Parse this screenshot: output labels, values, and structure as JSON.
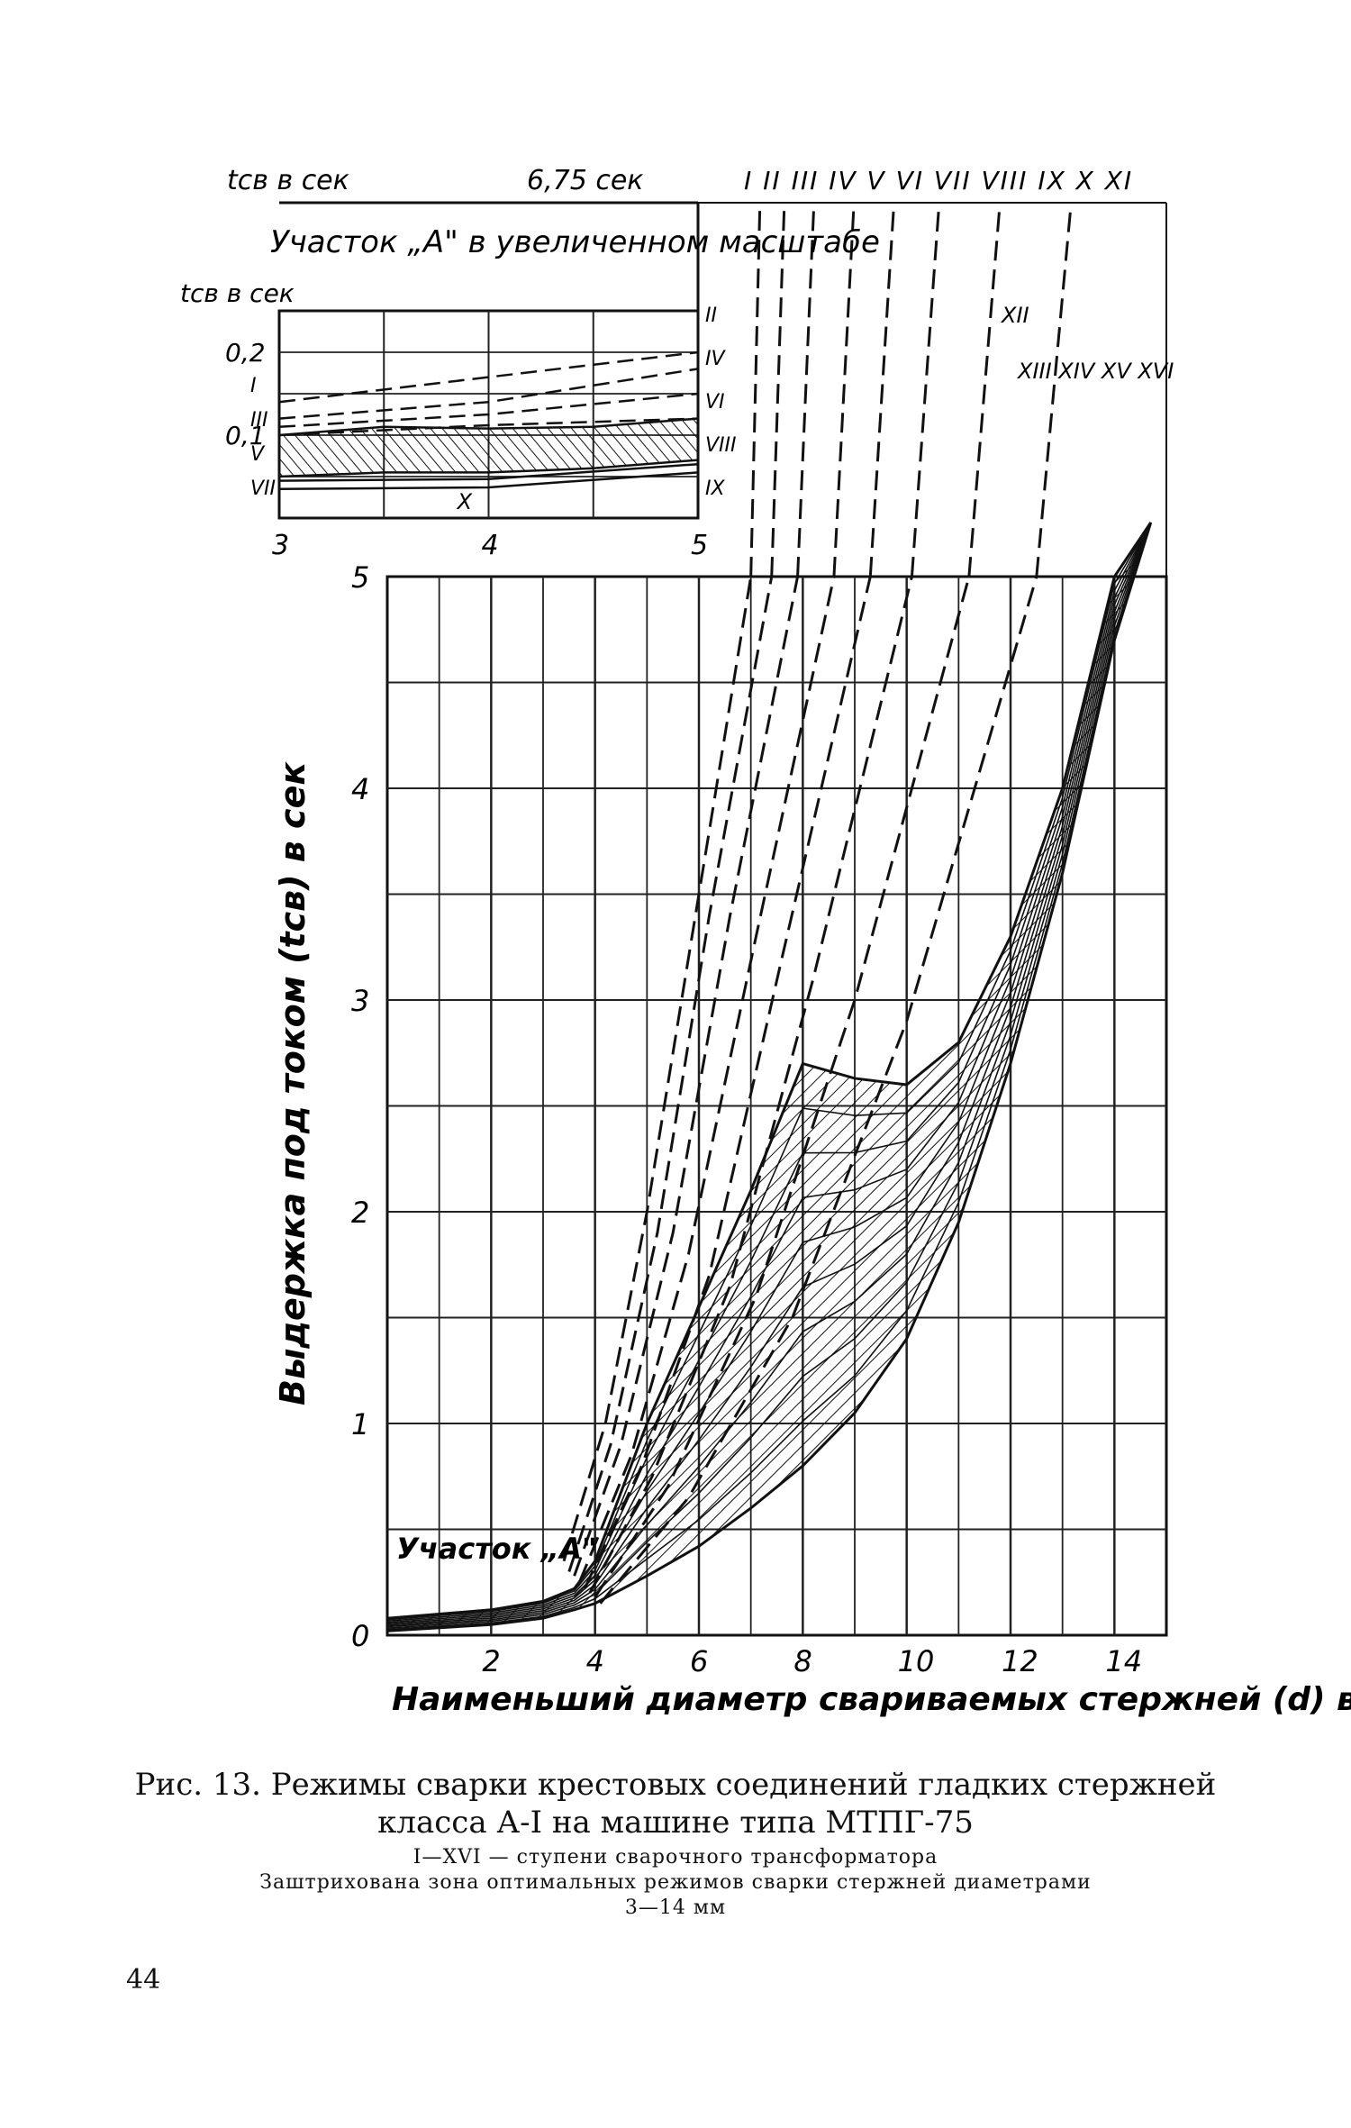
{
  "chart_data": [
    {
      "type": "line",
      "panel": "main",
      "xlabel": "Наименьший диаметр свариваемых стержней (d) в мм",
      "ylabel": "Выдержка под током (tсв) в сек",
      "xlim": [
        0,
        15
      ],
      "ylim": [
        0,
        5
      ],
      "x_ticks": [
        "2",
        "4",
        "6",
        "8",
        "10",
        "12",
        "14"
      ],
      "y_ticks": [
        "0",
        "1",
        "2",
        "3",
        "4",
        "5"
      ],
      "grid": true,
      "annotation": "Участок „А\"",
      "series": [
        {
          "name": "I",
          "style": "dashed",
          "x": [
            3.4,
            4.2,
            5.0,
            6.0,
            7.0
          ],
          "y": [
            0.35,
            1.0,
            2.0,
            3.5,
            5.0
          ]
        },
        {
          "name": "II",
          "style": "dashed",
          "x": [
            3.5,
            4.3,
            5.2,
            6.2,
            7.4
          ],
          "y": [
            0.3,
            0.9,
            1.9,
            3.4,
            5.0
          ]
        },
        {
          "name": "IV",
          "style": "dashed",
          "x": [
            3.6,
            4.5,
            5.5,
            6.6,
            7.9
          ],
          "y": [
            0.28,
            0.9,
            1.9,
            3.4,
            5.0
          ]
        },
        {
          "name": "VI",
          "style": "dashed",
          "x": [
            3.7,
            4.7,
            5.8,
            7.1,
            8.6
          ],
          "y": [
            0.25,
            0.85,
            1.8,
            3.3,
            5.0
          ]
        },
        {
          "name": "VIII",
          "style": "dashed",
          "x": [
            3.8,
            4.9,
            6.2,
            7.6,
            9.3
          ],
          "y": [
            0.22,
            0.8,
            1.7,
            3.2,
            5.0
          ]
        },
        {
          "name": "X",
          "style": "dashed",
          "x": [
            3.9,
            5.1,
            6.6,
            8.2,
            10.1
          ],
          "y": [
            0.2,
            0.75,
            1.65,
            3.1,
            5.0
          ]
        },
        {
          "name": "XII",
          "style": "dashed",
          "x": [
            4.0,
            5.4,
            7.1,
            9.0,
            11.2
          ],
          "y": [
            0.18,
            0.7,
            1.6,
            3.0,
            5.0
          ]
        },
        {
          "name": "XVI",
          "style": "dashed",
          "x": [
            4.1,
            5.8,
            7.8,
            10.0,
            12.5
          ],
          "y": [
            0.15,
            0.65,
            1.5,
            2.9,
            5.0
          ]
        }
      ],
      "optimal_zone": {
        "upper": {
          "x": [
            0,
            2,
            3,
            3.6,
            4,
            5,
            6,
            7,
            8,
            9,
            10,
            11,
            12,
            13,
            14,
            14.7
          ],
          "y": [
            0.08,
            0.12,
            0.16,
            0.22,
            0.35,
            1.0,
            1.55,
            2.1,
            2.7,
            2.63,
            2.6,
            2.8,
            3.3,
            4.0,
            5.0,
            5.9
          ]
        },
        "lower": {
          "x": [
            0,
            2,
            3,
            3.6,
            4,
            5,
            6,
            7,
            8,
            9,
            10,
            11,
            12,
            13,
            14,
            14.7
          ],
          "y": [
            0.02,
            0.05,
            0.08,
            0.12,
            0.15,
            0.28,
            0.42,
            0.6,
            0.8,
            1.05,
            1.4,
            1.95,
            2.7,
            3.6,
            4.7,
            5.9
          ]
        }
      }
    },
    {
      "type": "line",
      "panel": "inset",
      "title": "Участок „А\" в увеличенном масштабе",
      "ylabel": "tсв в сек",
      "xlim": [
        3,
        5
      ],
      "ylim": [
        0,
        0.25
      ],
      "x_ticks": [
        "3",
        "4",
        "5"
      ],
      "y_ticks": [
        "0,1",
        "0,2"
      ],
      "series_labels_left": [
        "I",
        "III",
        "V",
        "VII"
      ],
      "series_labels_right": [
        "II",
        "IV",
        "VI",
        "VIII",
        "IX"
      ],
      "series_labels_mid": [
        "X"
      ],
      "series": [
        {
          "name": "I",
          "style": "dashed",
          "x": [
            3,
            4,
            5
          ],
          "y": [
            0.14,
            0.17,
            0.2
          ]
        },
        {
          "name": "II",
          "style": "dashed",
          "x": [
            3,
            4,
            5
          ],
          "y": [
            0.12,
            0.14,
            0.18
          ]
        },
        {
          "name": "IV",
          "style": "dashed",
          "x": [
            3,
            4,
            5
          ],
          "y": [
            0.11,
            0.125,
            0.15
          ]
        },
        {
          "name": "VI",
          "style": "dashed",
          "x": [
            3,
            4,
            5
          ],
          "y": [
            0.1,
            0.112,
            0.12
          ]
        }
      ],
      "optimal_zone": {
        "upper": {
          "x": [
            3,
            3.5,
            4,
            4.5,
            5
          ],
          "y": [
            0.1,
            0.11,
            0.108,
            0.11,
            0.12
          ]
        },
        "lower": {
          "x": [
            3,
            3.5,
            4,
            4.5,
            5
          ],
          "y": [
            0.05,
            0.055,
            0.055,
            0.06,
            0.07
          ]
        }
      }
    }
  ],
  "top_labels": {
    "t_label": "tсв в сек",
    "time_label": "6,75 сек",
    "roman_top": "I II III IV V VI VII VIII IX X XI",
    "roman_xii": "XII",
    "roman_right": "XIII XIV XV XVI"
  },
  "caption": {
    "title_line1": "Рис. 13. Режимы сварки крестовых соединений гладких стержней",
    "title_line2": "класса А-I на машине типа МТПГ-75",
    "note_line1": "I—XVI — ступени сварочного трансформатора",
    "note_line2": "Заштрихована зона оптимальных режимов сварки стержней диаметрами",
    "note_line3": "3—14 мм"
  },
  "page_number": "44"
}
